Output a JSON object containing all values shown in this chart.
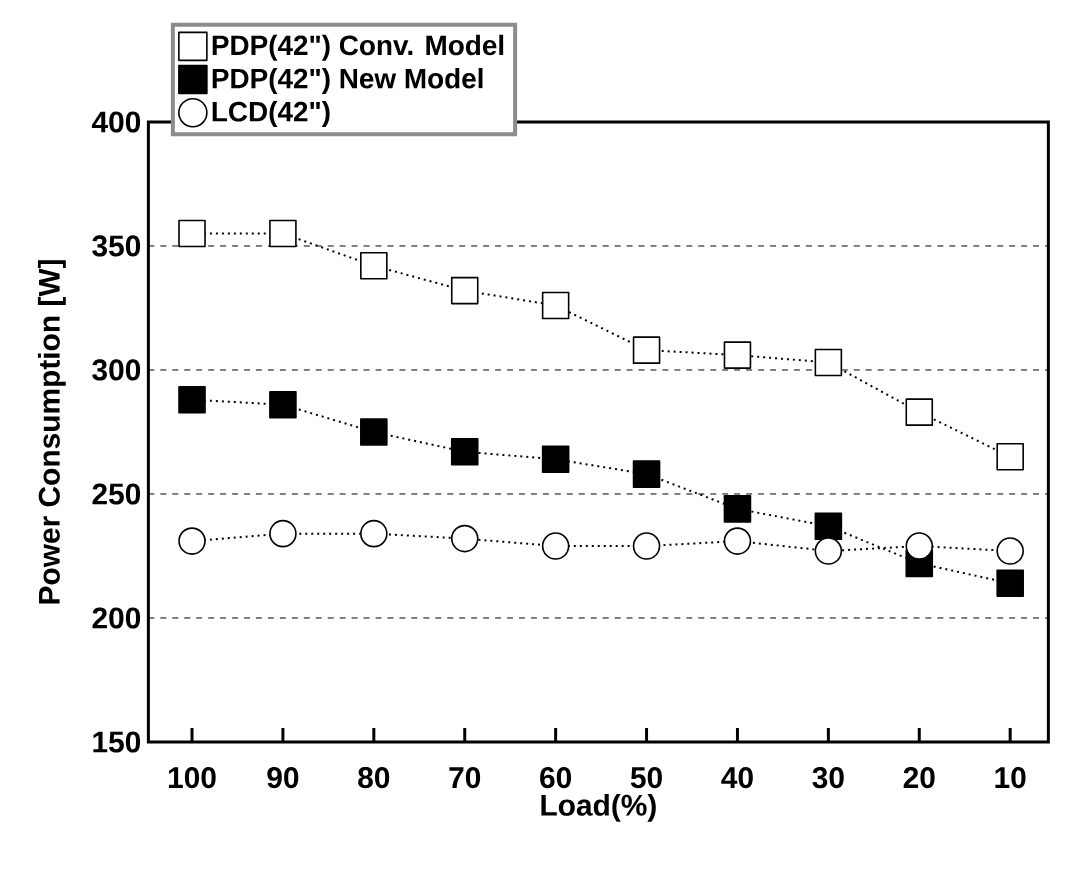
{
  "chart_data": {
    "type": "line",
    "xlabel": "Load(%)",
    "ylabel": "Power Consumption [W]",
    "categories": [
      "100",
      "90",
      "80",
      "70",
      "60",
      "50",
      "40",
      "30",
      "20",
      "10"
    ],
    "ylim": [
      150,
      400
    ],
    "yticks": [
      150,
      200,
      250,
      300,
      350,
      400
    ],
    "grid": "y",
    "legend": "top left",
    "line_style": "dotted",
    "series": [
      {
        "name": "PDP(42\") Conv. Model",
        "color": "#ffffff",
        "marker": "square",
        "values": [
          355,
          355,
          342,
          332,
          326,
          308,
          306,
          303,
          283,
          265
        ]
      },
      {
        "name": "PDP(42\") New Model",
        "color": "#000000",
        "marker": "square",
        "values": [
          288,
          286,
          275,
          267,
          264,
          258,
          244,
          237,
          222,
          214
        ]
      },
      {
        "name": "LCD(42\")",
        "color": "#ffffff",
        "marker": "circle",
        "values": [
          231,
          234,
          234,
          232,
          229,
          229,
          231,
          227,
          229,
          227
        ]
      }
    ]
  }
}
